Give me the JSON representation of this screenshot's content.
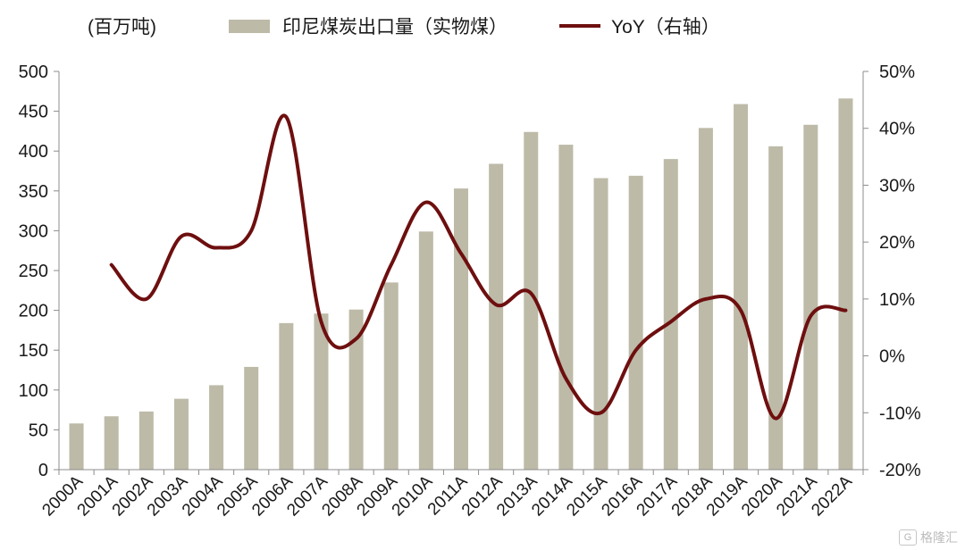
{
  "legend": {
    "unit": "(百万吨)",
    "bar_label": "印尼煤炭出口量（实物煤）",
    "line_label": "YoY（右轴）"
  },
  "watermark": {
    "text": "格隆汇",
    "logo": "G"
  },
  "colors": {
    "bar": "#bdbaa8",
    "line": "#6e0f0f",
    "axis": "#8c8c8c"
  },
  "chart_data": {
    "type": "bar",
    "categories": [
      "2000A",
      "2001A",
      "2002A",
      "2003A",
      "2004A",
      "2005A",
      "2006A",
      "2007A",
      "2008A",
      "2009A",
      "2010A",
      "2011A",
      "2012A",
      "2013A",
      "2014A",
      "2015A",
      "2016A",
      "2017A",
      "2018A",
      "2019A",
      "2020A",
      "2021A",
      "2022A"
    ],
    "series": [
      {
        "name": "印尼煤炭出口量（实物煤）",
        "type": "bar",
        "axis": "left",
        "values": [
          58,
          67,
          73,
          89,
          106,
          129,
          184,
          196,
          201,
          235,
          299,
          353,
          384,
          424,
          408,
          366,
          369,
          390,
          429,
          459,
          406,
          433,
          466
        ]
      },
      {
        "name": "YoY（右轴）",
        "type": "line",
        "axis": "right",
        "values": [
          null,
          16,
          10,
          21,
          19,
          22,
          42,
          6,
          3,
          16,
          27,
          18,
          9,
          11,
          -4,
          -10,
          1,
          6,
          10,
          8,
          -11,
          7,
          8
        ]
      }
    ],
    "y_left": {
      "min": 0,
      "max": 500,
      "ticks": [
        "0",
        "50",
        "100",
        "150",
        "200",
        "250",
        "300",
        "350",
        "400",
        "450",
        "500"
      ]
    },
    "y_right": {
      "min": -20,
      "max": 50,
      "ticks": [
        "-20%",
        "-10%",
        "0%",
        "10%",
        "20%",
        "30%",
        "40%",
        "50%"
      ]
    },
    "grid": false,
    "legend_position": "top"
  }
}
